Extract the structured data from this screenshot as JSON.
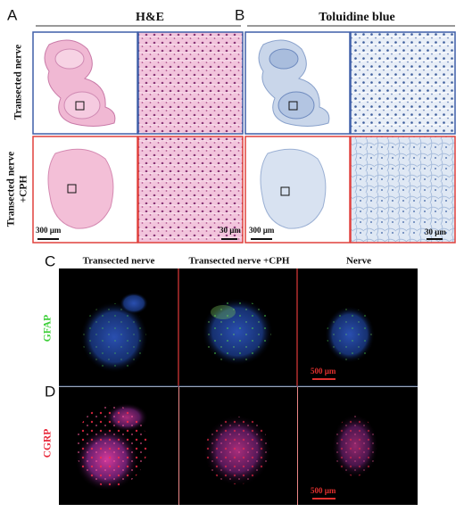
{
  "panel_a": {
    "label": "A",
    "title": "H&E"
  },
  "panel_b": {
    "label": "B",
    "title": "Toluidine blue"
  },
  "rows": [
    [
      "Transected nerve"
    ],
    [
      "Transected nerve",
      "+CPH"
    ]
  ],
  "scale_bars": {
    "low_mag": "300 µm",
    "high_mag": "30 µm"
  },
  "panel_c": {
    "label": "C",
    "columns": [
      "Transected nerve",
      "Transected nerve +CPH",
      "Nerve"
    ],
    "stain": "GFAP",
    "scale_bar": "500 µm"
  },
  "panel_d": {
    "label": "D",
    "stain": "CGRP",
    "scale_bar": "500 µm"
  }
}
